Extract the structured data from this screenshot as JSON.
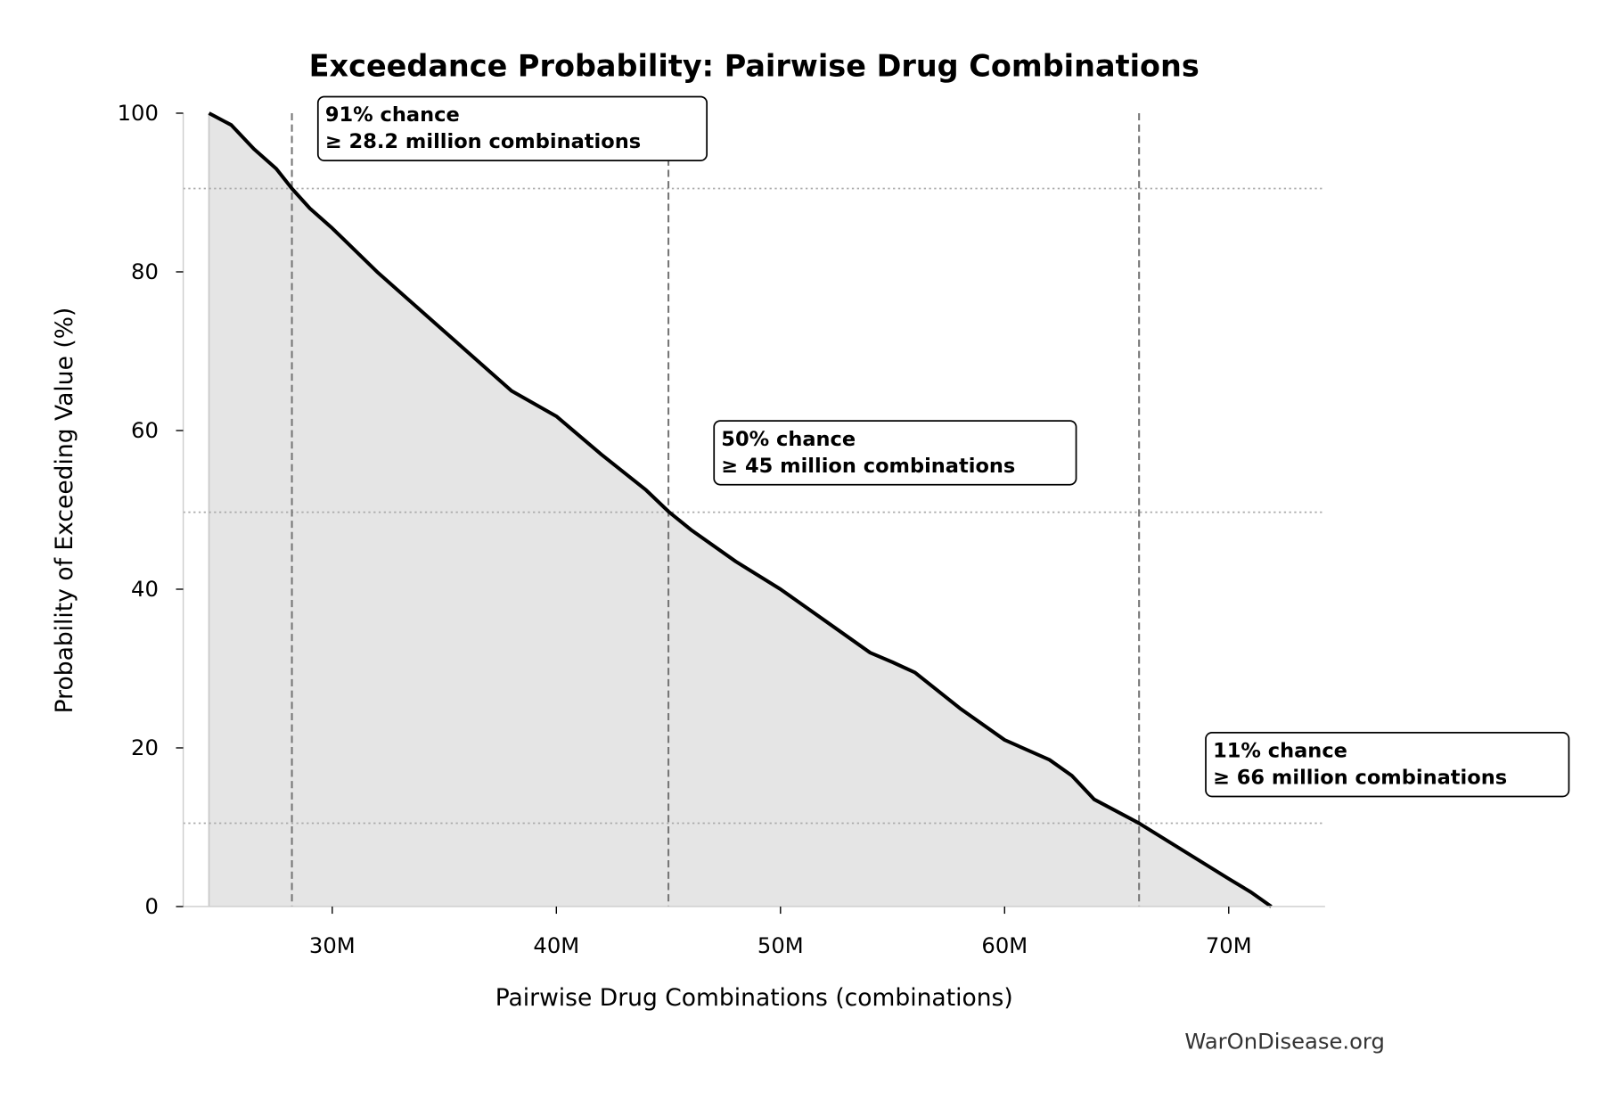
{
  "chart_data": {
    "type": "area",
    "title": "Exceedance Probability: Pairwise Drug Combinations",
    "xlabel": "Pairwise Drug Combinations (combinations)",
    "ylabel": "Probability of Exceeding Value (%)",
    "xlim": [
      23.35,
      74.3
    ],
    "ylim": [
      0,
      100
    ],
    "x_unit": "million combinations",
    "xticks": [
      30,
      40,
      50,
      60,
      70
    ],
    "xtick_labels": [
      "30M",
      "40M",
      "50M",
      "60M",
      "70M"
    ],
    "yticks": [
      0,
      20,
      40,
      60,
      80,
      100
    ],
    "ytick_labels": [
      "0",
      "20",
      "40",
      "60",
      "80",
      "100"
    ],
    "grid": false,
    "series": [
      {
        "x": [
          24.5,
          25.5,
          26.5,
          27.5,
          28.2,
          29,
          30,
          32,
          34,
          35,
          36,
          38,
          40,
          42,
          44,
          45,
          46,
          48,
          50,
          52,
          54,
          55,
          56,
          58,
          60,
          62,
          63,
          64,
          66,
          68,
          70,
          71,
          71.9
        ],
        "y": [
          100,
          98.5,
          95.5,
          93,
          90.5,
          88,
          85.5,
          80,
          75,
          72.5,
          70,
          65,
          61.8,
          57,
          52.5,
          49.8,
          47.5,
          43.5,
          40,
          36,
          32,
          30.8,
          29.5,
          25,
          21,
          18.5,
          16.5,
          13.5,
          10.5,
          7,
          3.5,
          1.8,
          0
        ],
        "color": "#000000",
        "fill_color": "#e5e5e5"
      }
    ],
    "reference_lines": {
      "vertical": [
        28.2,
        45,
        66
      ],
      "horizontal": [
        90.5,
        49.7,
        10.5
      ]
    },
    "annotations": [
      {
        "line1": "91% chance",
        "line2": "≥ 28.2 million combinations"
      },
      {
        "line1": "50% chance",
        "line2": "≥ 45 million combinations"
      },
      {
        "line1": "11% chance",
        "line2": "≥ 66 million combinations"
      }
    ],
    "watermark": "WarOnDisease.org"
  }
}
